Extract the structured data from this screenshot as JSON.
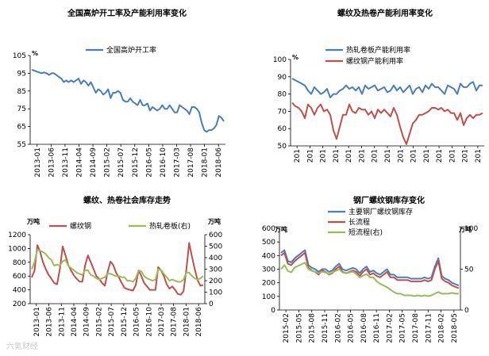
{
  "watermark": "六氪财经",
  "chart_data": [
    {
      "type": "line",
      "title": "全国高炉开工率及产能利用率变化",
      "unit": "%",
      "ylim": [
        55,
        105
      ],
      "yticks": [
        55,
        65,
        75,
        85,
        95,
        105
      ],
      "x_ticks": [
        "2013-01",
        "2013-06",
        "2013-11",
        "2014-04",
        "2014-09",
        "2015-02",
        "2015-07",
        "2015-12",
        "2016-05",
        "2016-10",
        "2017-03",
        "2017-08",
        "2018-01",
        "2018-06"
      ],
      "legend_position": "top",
      "series": [
        {
          "name": "全国高炉开工率",
          "color": "#4a7ebb",
          "values": [
            97,
            96.5,
            96,
            95.5,
            95,
            95.5,
            95,
            94,
            95,
            95,
            94,
            93,
            92,
            90,
            91,
            90,
            91,
            90,
            91,
            92,
            89,
            91,
            90,
            88,
            90,
            87,
            84,
            86,
            85,
            83,
            84,
            86,
            81,
            84,
            84,
            85,
            84,
            80,
            79,
            79,
            81,
            79,
            78,
            77,
            80,
            77,
            77,
            78,
            74,
            76,
            75,
            74,
            75,
            77,
            75,
            75,
            77,
            75,
            73,
            73,
            77,
            76,
            75,
            74,
            72,
            76,
            76,
            75,
            73,
            67,
            63,
            62,
            63,
            63,
            64,
            66,
            71,
            70,
            68
          ]
        }
      ]
    },
    {
      "type": "line",
      "title": "螺纹及热卷产能利用率变化",
      "unit": "%",
      "ylim": [
        50,
        100
      ],
      "yticks": [
        50,
        60,
        70,
        80,
        90,
        100
      ],
      "x_ticks": [
        "201",
        "201",
        "201",
        "201",
        "201",
        "201",
        "201",
        "201",
        "201",
        "201",
        "201",
        "201",
        "201",
        "201",
        "201"
      ],
      "legend_position": "top",
      "series": [
        {
          "name": "热轧卷板产能利用率",
          "color": "#4a7ebb",
          "values": [
            89,
            88,
            87,
            86,
            85,
            82,
            80,
            84,
            82,
            80,
            81,
            83,
            78,
            80,
            80,
            82,
            83,
            85,
            83,
            84,
            82,
            84,
            80,
            85,
            83,
            84,
            85,
            82,
            83,
            84,
            81,
            82,
            85,
            82,
            84,
            81,
            83,
            85,
            80,
            83,
            84,
            81,
            85,
            83,
            86,
            84,
            84,
            82,
            80,
            85,
            84,
            83,
            80,
            86,
            84,
            84,
            86,
            87,
            82,
            85,
            85
          ]
        },
        {
          "name": "螺纹钢产能利用率",
          "color": "#c0504d",
          "values": [
            75,
            73,
            72,
            70,
            66,
            74,
            72,
            68,
            72,
            74,
            70,
            71,
            68,
            59,
            54,
            61,
            68,
            68,
            74,
            70,
            69,
            72,
            71,
            71,
            68,
            70,
            66,
            71,
            69,
            71,
            69,
            67,
            72,
            68,
            61,
            55,
            51,
            57,
            63,
            65,
            68,
            68,
            69,
            70,
            72,
            72,
            71,
            72,
            70,
            71,
            69,
            69,
            65,
            69,
            62,
            66,
            68,
            66,
            68,
            68,
            69
          ]
        }
      ]
    },
    {
      "type": "line",
      "title": "螺纹、热卷社会库存走势",
      "y_unit_left": "万吨",
      "y_unit_right": "万吨",
      "ylim": [
        200,
        1200
      ],
      "yticks": [
        200,
        400,
        600,
        800,
        1000,
        1200
      ],
      "y2lim": [
        0,
        600
      ],
      "y2ticks": [
        0,
        100,
        200,
        300,
        400,
        500,
        600
      ],
      "x_ticks": [
        "2013-01",
        "2013-06",
        "2013-11",
        "2014-04",
        "2014-09",
        "2015-02",
        "2015-07",
        "2015-12",
        "2016-05",
        "2016-10",
        "2017-03",
        "2017-08",
        "2018-01",
        "2018-06"
      ],
      "legend_position": "top",
      "series": [
        {
          "name": "螺纹钢",
          "color": "#c0504d",
          "axis": "left",
          "values": [
            580,
            680,
            1050,
            950,
            800,
            700,
            620,
            560,
            500,
            480,
            700,
            1030,
            900,
            760,
            680,
            610,
            560,
            520,
            520,
            760,
            900,
            800,
            700,
            600,
            560,
            500,
            460,
            660,
            810,
            760,
            650,
            580,
            500,
            430,
            410,
            400,
            390,
            470,
            680,
            600,
            500,
            450,
            400,
            400,
            400,
            730,
            680,
            600,
            480,
            420,
            450,
            400,
            340,
            330,
            380,
            700,
            1080,
            880,
            700,
            540,
            460,
            470
          ]
        },
        {
          "name": "热轧卷板(右)",
          "color": "#9bbb59",
          "axis": "right",
          "values": [
            300,
            360,
            470,
            460,
            450,
            430,
            400,
            380,
            330,
            340,
            330,
            370,
            380,
            330,
            310,
            290,
            270,
            260,
            250,
            290,
            290,
            250,
            240,
            220,
            210,
            220,
            230,
            260,
            260,
            250,
            240,
            240,
            230,
            230,
            200,
            200,
            190,
            220,
            290,
            280,
            240,
            220,
            210,
            200,
            210,
            300,
            290,
            260,
            230,
            200,
            210,
            200,
            190,
            190,
            210,
            270,
            270,
            240,
            220,
            210,
            220,
            240
          ]
        }
      ]
    },
    {
      "type": "line",
      "title": "钢厂螺纹钢库存变化",
      "y_unit_left": "万吨",
      "y_unit_right": "万吨",
      "ylim": [
        0,
        600
      ],
      "yticks": [
        0,
        100,
        200,
        300,
        400,
        500,
        600
      ],
      "y2lim": [
        0,
        100
      ],
      "y2ticks": [
        0,
        50,
        100
      ],
      "x_ticks": [
        "2015-02",
        "2015-05",
        "2015-08",
        "2015-11",
        "2016-02",
        "2016-05",
        "2016-08",
        "2016-11",
        "2017-02",
        "2017-05",
        "2017-08",
        "2017-11",
        "2018-02",
        "2018-05"
      ],
      "legend_position": "top",
      "series": [
        {
          "name": "主要钢厂螺纹钢库存",
          "color": "#4a7ebb",
          "axis": "left",
          "values": [
            420,
            440,
            360,
            350,
            380,
            400,
            420,
            440,
            330,
            310,
            300,
            280,
            300,
            300,
            280,
            290,
            320,
            340,
            300,
            290,
            300,
            310,
            300,
            270,
            300,
            320,
            280,
            290,
            270,
            260,
            280,
            300,
            260,
            260,
            240,
            240,
            240,
            240,
            230,
            230,
            230,
            230,
            240,
            230,
            240,
            320,
            380,
            250,
            230,
            220,
            200,
            190,
            180
          ]
        },
        {
          "name": "长流程",
          "color": "#c0504d",
          "axis": "left",
          "values": [
            400,
            420,
            340,
            330,
            360,
            380,
            400,
            420,
            310,
            290,
            280,
            260,
            290,
            280,
            260,
            270,
            300,
            320,
            280,
            270,
            280,
            290,
            280,
            250,
            280,
            300,
            260,
            270,
            250,
            240,
            260,
            280,
            240,
            240,
            220,
            220,
            220,
            220,
            210,
            210,
            210,
            210,
            220,
            210,
            220,
            300,
            360,
            230,
            210,
            200,
            180,
            170,
            160
          ]
        },
        {
          "name": "短流程(右)",
          "color": "#9bbb59",
          "axis": "right",
          "values": [
            50,
            55,
            48,
            46,
            52,
            54,
            56,
            58,
            50,
            48,
            47,
            45,
            47,
            46,
            44,
            46,
            48,
            50,
            46,
            45,
            46,
            47,
            44,
            40,
            42,
            44,
            40,
            40,
            35,
            32,
            30,
            28,
            25,
            22,
            20,
            20,
            18,
            18,
            18,
            17,
            18,
            17,
            18,
            17,
            18,
            20,
            22,
            20,
            20,
            20,
            21,
            20,
            20
          ]
        }
      ]
    }
  ]
}
